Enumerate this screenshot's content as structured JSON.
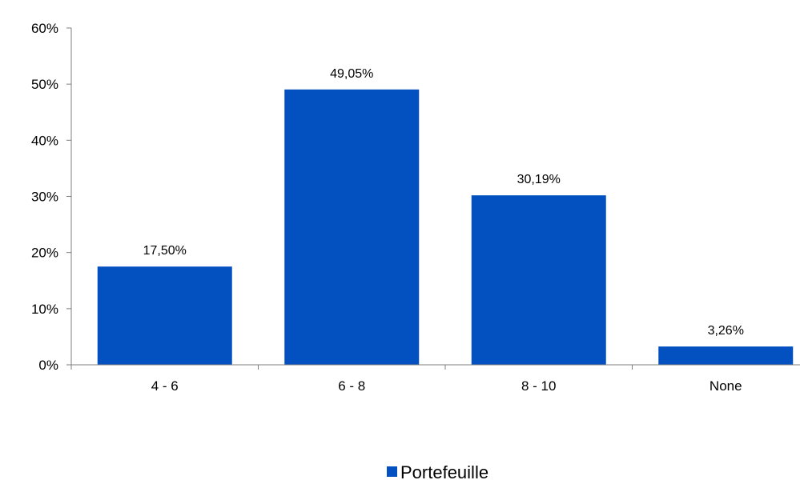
{
  "chart_data": {
    "type": "bar",
    "categories": [
      "4 - 6",
      "6 - 8",
      "8 - 10",
      "None"
    ],
    "series": [
      {
        "name": "Portefeuille",
        "values": [
          17.5,
          49.05,
          30.19,
          3.26
        ],
        "labels": [
          "17,50%",
          "49,05%",
          "30,19%",
          "3,26%"
        ],
        "color": "#0350C0"
      }
    ],
    "ylim": [
      0,
      60
    ],
    "yticks": [
      0,
      10,
      20,
      30,
      40,
      50,
      60
    ],
    "ytick_labels": [
      "0%",
      "10%",
      "20%",
      "30%",
      "40%",
      "50%",
      "60%"
    ],
    "title": "",
    "xlabel": "",
    "ylabel": "",
    "grid": false,
    "legend_position": "bottom-center"
  }
}
